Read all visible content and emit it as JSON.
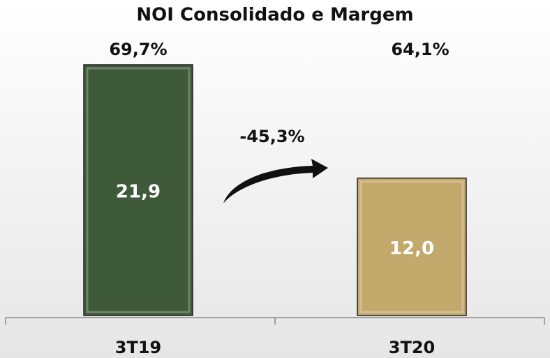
{
  "chart_data": {
    "type": "bar",
    "title": "NOI Consolidado e Margem",
    "categories": [
      "3T19",
      "3T20"
    ],
    "values": [
      21.9,
      12.0
    ],
    "value_labels": [
      "21,9",
      "12,0"
    ],
    "colors": [
      "#3f5a39",
      "#c4a96c"
    ],
    "margin_values": [
      69.7,
      64.1
    ],
    "margin_labels": [
      "69,7%",
      "64,1%"
    ],
    "change": {
      "value": -45.3,
      "label": "-45,3%"
    }
  }
}
